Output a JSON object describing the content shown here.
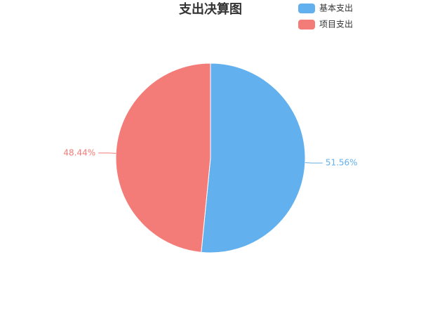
{
  "chart_data": {
    "type": "pie",
    "title": "支出决算图",
    "categories": [
      "基本支出",
      "项目支出"
    ],
    "values": [
      51.56,
      48.44
    ],
    "value_labels": [
      "51.56%",
      "48.44%"
    ],
    "colors": [
      "#62b0ed",
      "#f47c78"
    ],
    "legend": "top-right"
  }
}
